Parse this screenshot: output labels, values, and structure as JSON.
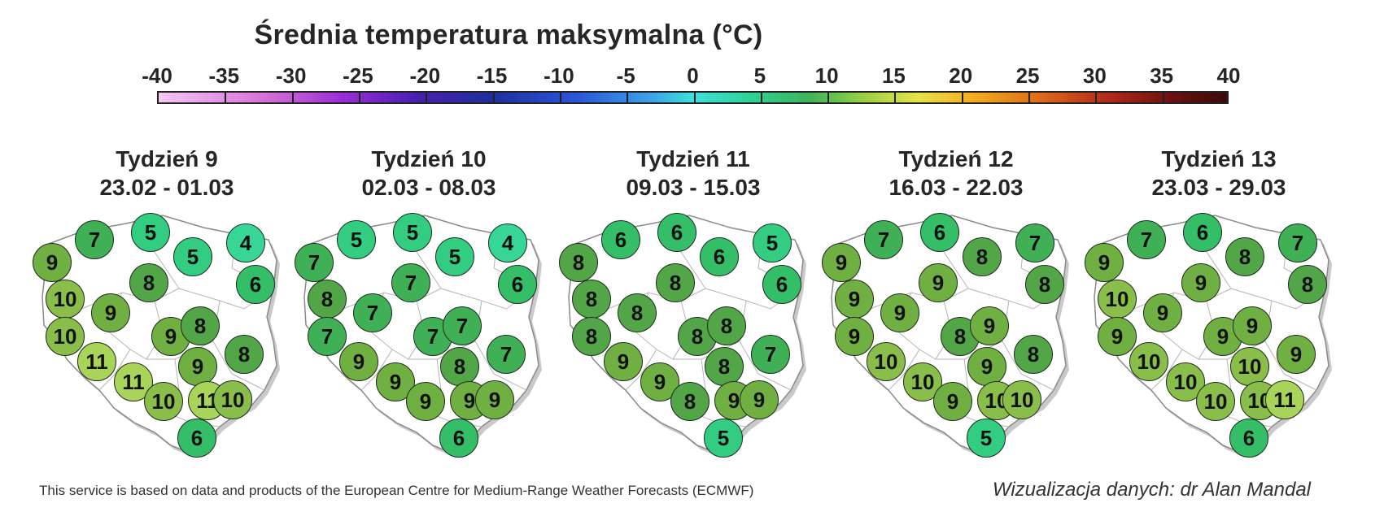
{
  "title": "Średnia temperatura maksymalna (°C)",
  "scale": {
    "labels": [
      "-40",
      "-35",
      "-30",
      "-25",
      "-20",
      "-15",
      "-10",
      "-5",
      "0",
      "5",
      "10",
      "15",
      "20",
      "25",
      "30",
      "35",
      "40"
    ],
    "min": -40,
    "max": 40
  },
  "weeks": [
    {
      "week": "Tydzień 9",
      "dates": "23.02 - 01.03",
      "values": [
        9,
        7,
        5,
        5,
        4,
        6,
        10,
        9,
        8,
        10,
        9,
        8,
        11,
        9,
        8,
        11,
        10,
        11,
        10,
        6
      ]
    },
    {
      "week": "Tydzień 10",
      "dates": "02.03 - 08.03",
      "values": [
        7,
        5,
        5,
        5,
        4,
        6,
        8,
        7,
        7,
        7,
        7,
        7,
        9,
        8,
        7,
        9,
        9,
        9,
        9,
        6
      ]
    },
    {
      "week": "Tydzień 11",
      "dates": "09.03 - 15.03",
      "values": [
        8,
        6,
        6,
        6,
        5,
        6,
        8,
        8,
        8,
        8,
        8,
        8,
        9,
        8,
        7,
        9,
        8,
        9,
        9,
        5
      ]
    },
    {
      "week": "Tydzień 12",
      "dates": "16.03 - 22.03",
      "values": [
        9,
        7,
        6,
        8,
        7,
        8,
        9,
        9,
        9,
        9,
        8,
        9,
        10,
        9,
        8,
        10,
        9,
        10,
        10,
        5
      ]
    },
    {
      "week": "Tydzień 13",
      "dates": "23.03 - 29.03",
      "values": [
        9,
        7,
        6,
        8,
        7,
        8,
        10,
        9,
        9,
        9,
        9,
        9,
        10,
        10,
        9,
        10,
        10,
        10,
        11,
        6
      ]
    }
  ],
  "attribution": "This service is based on data and products of the European Centre for Medium-Range Weather Forecasts (ECMWF)",
  "credit": "Wizualizacja danych: dr Alan Mandal"
}
